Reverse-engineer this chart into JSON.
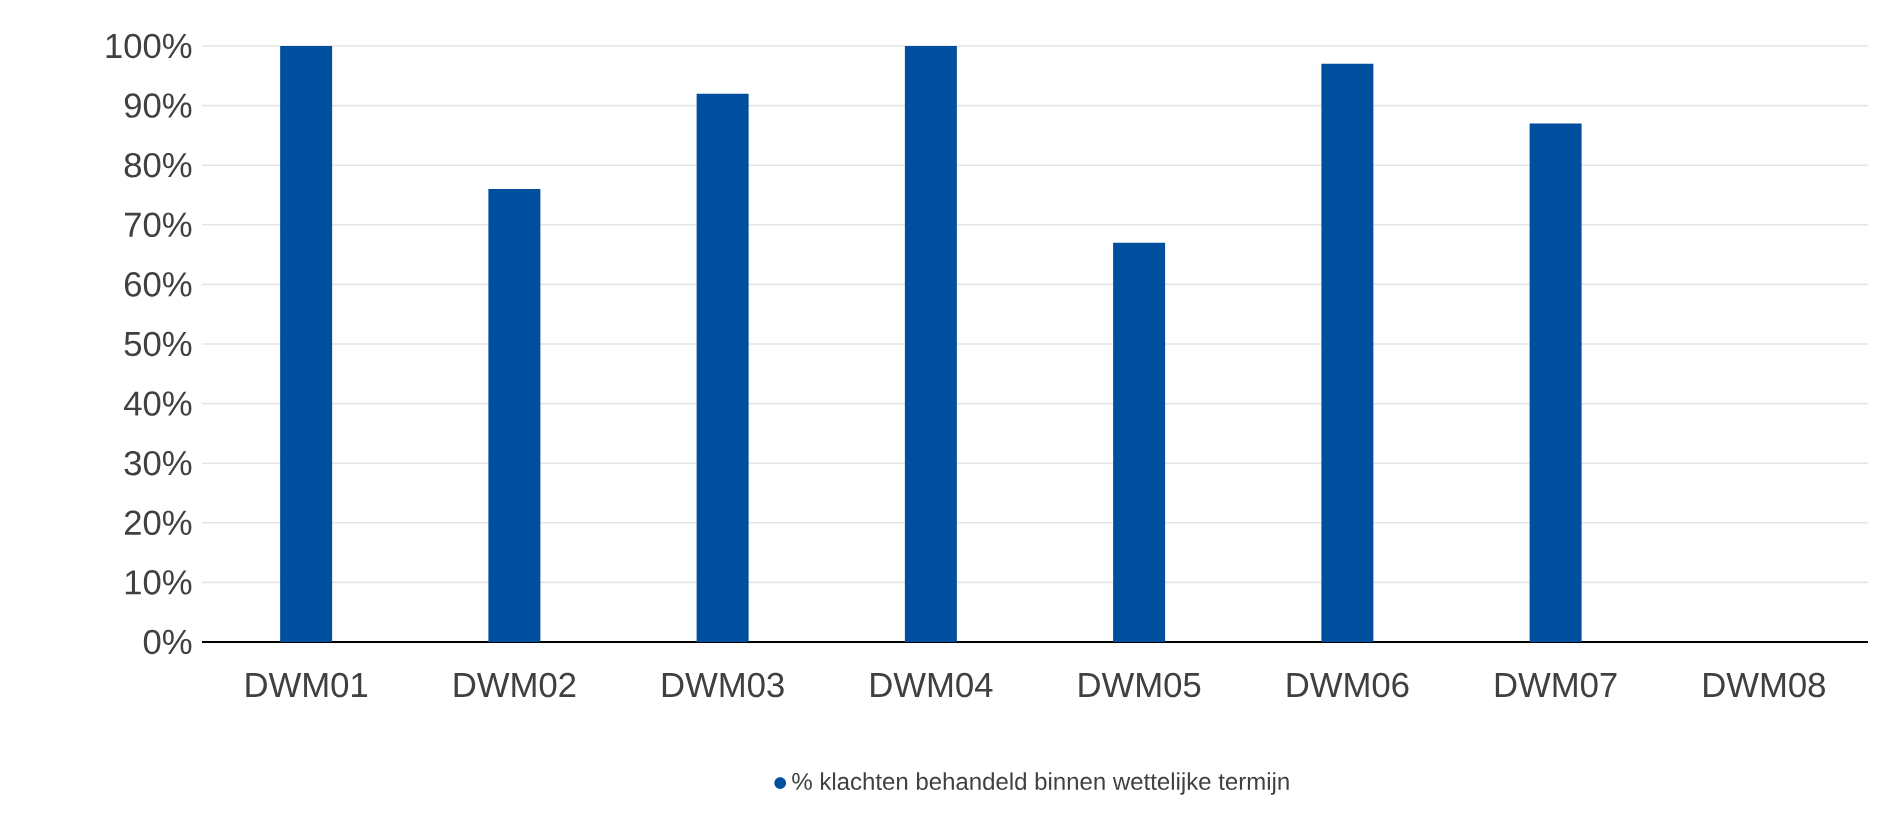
{
  "chart_data": {
    "type": "bar",
    "categories": [
      "DWM01",
      "DWM02",
      "DWM03",
      "DWM04",
      "DWM05",
      "DWM06",
      "DWM07",
      "DWM08"
    ],
    "series": [
      {
        "name": "% klachten behandeld binnen wettelijke termijn",
        "color": "#004f9f",
        "values": [
          100,
          76,
          92,
          100,
          67,
          97,
          87,
          null
        ]
      }
    ],
    "ylim": [
      0,
      100
    ],
    "yticks": [
      {
        "value": 0,
        "label": "0%"
      },
      {
        "value": 10,
        "label": "10%"
      },
      {
        "value": 20,
        "label": "20%"
      },
      {
        "value": 30,
        "label": "30%"
      },
      {
        "value": 40,
        "label": "40%"
      },
      {
        "value": 50,
        "label": "50%"
      },
      {
        "value": 60,
        "label": "60%"
      },
      {
        "value": 70,
        "label": "70%"
      },
      {
        "value": 80,
        "label": "80%"
      },
      {
        "value": 90,
        "label": "90%"
      },
      {
        "value": 100,
        "label": "100%"
      }
    ],
    "grid": "y",
    "legend": "bottom"
  }
}
